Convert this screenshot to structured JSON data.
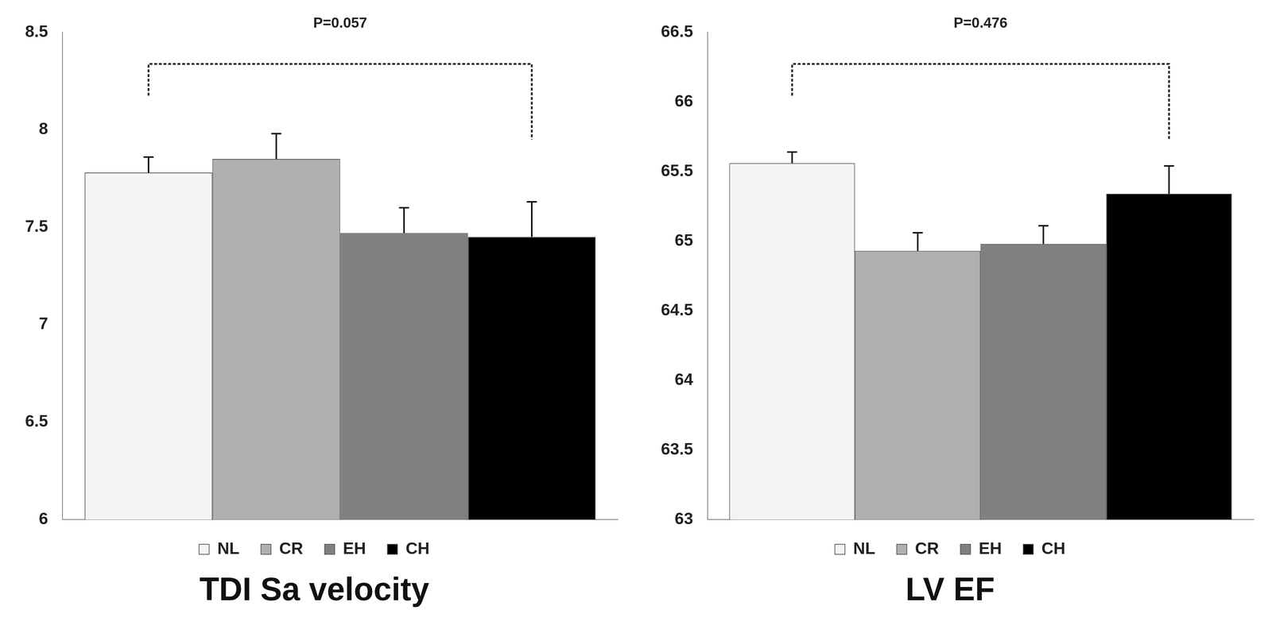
{
  "chart_data": [
    {
      "type": "bar",
      "title": "TDI Sa velocity",
      "annotation": "P=0.057",
      "categories": [
        null
      ],
      "series": [
        {
          "name": "NL",
          "color": "#f4f4f4",
          "values": [
            7.78
          ],
          "errors": [
            0.08
          ]
        },
        {
          "name": "CR",
          "color": "#b0b0b0",
          "values": [
            7.85
          ],
          "errors": [
            0.13
          ]
        },
        {
          "name": "EH",
          "color": "#808080",
          "values": [
            7.47
          ],
          "errors": [
            0.13
          ]
        },
        {
          "name": "CH",
          "color": "#000000",
          "values": [
            7.45
          ],
          "errors": [
            0.18
          ]
        }
      ],
      "ylim": [
        6,
        8.5
      ],
      "yticks": [
        6,
        6.5,
        7,
        7.5,
        8,
        8.5
      ],
      "grid": false,
      "legend": "bottom",
      "tick_labels": "y"
    },
    {
      "type": "bar",
      "title": "LV EF",
      "annotation": "P=0.476",
      "categories": [
        null
      ],
      "series": [
        {
          "name": "NL",
          "color": "#f4f4f4",
          "values": [
            65.56
          ],
          "errors": [
            0.08
          ]
        },
        {
          "name": "CR",
          "color": "#b0b0b0",
          "values": [
            64.93
          ],
          "errors": [
            0.13
          ]
        },
        {
          "name": "EH",
          "color": "#808080",
          "values": [
            64.98
          ],
          "errors": [
            0.13
          ]
        },
        {
          "name": "CH",
          "color": "#000000",
          "values": [
            65.34
          ],
          "errors": [
            0.2
          ]
        }
      ],
      "ylim": [
        63,
        66.5
      ],
      "yticks": [
        63,
        63.5,
        64,
        64.5,
        65,
        65.5,
        66,
        66.5
      ],
      "grid": false,
      "legend": "bottom",
      "tick_labels": "y"
    }
  ]
}
